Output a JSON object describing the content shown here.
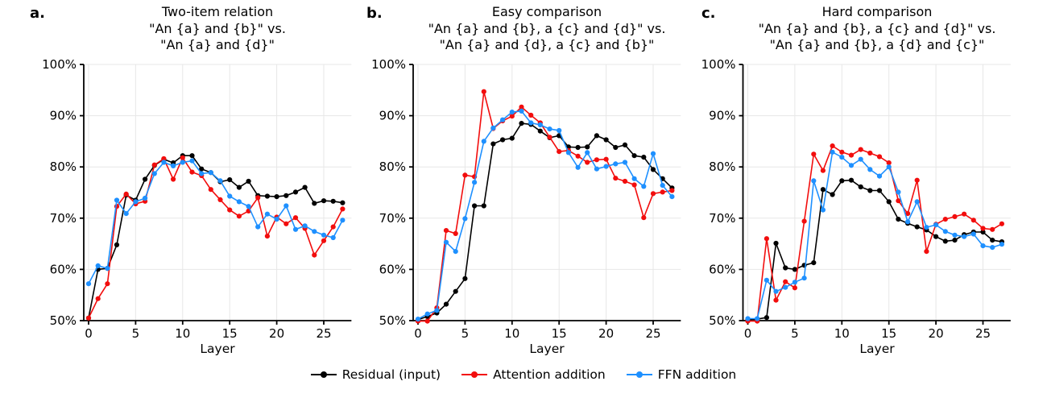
{
  "figure": {
    "background": "#ffffff",
    "panels": [
      {
        "letter": "a.",
        "title_lines": [
          "Two-item relation",
          "\"An {a} and {b}\" vs.",
          "\"An {a} and {d}\""
        ],
        "xlabel": "Layer"
      },
      {
        "letter": "b.",
        "title_lines": [
          "Easy comparison",
          "\"An {a} and {b}, a {c} and {d}\" vs.",
          "\"An {a} and {d}, a {c} and {b}\""
        ],
        "xlabel": "Layer"
      },
      {
        "letter": "c.",
        "title_lines": [
          "Hard comparison",
          "\"An {a} and {b}, a {c} and {d}\" vs.",
          "\"An {a} and {b}, a {d} and {c}\""
        ],
        "xlabel": "Layer"
      }
    ],
    "legend": [
      {
        "label": "Residual (input)",
        "color": "#000000"
      },
      {
        "label": "Attention addition",
        "color": "#f20d0d"
      },
      {
        "label": "FFN addition",
        "color": "#1e90ff"
      }
    ]
  },
  "chart_data": [
    {
      "type": "line",
      "title": "Two-item relation \"An {a} and {b}\" vs. \"An {a} and {d}\"",
      "xlabel": "Layer",
      "ylabel": "",
      "x": [
        0,
        1,
        2,
        3,
        4,
        5,
        6,
        7,
        8,
        9,
        10,
        11,
        12,
        13,
        14,
        15,
        16,
        17,
        18,
        19,
        20,
        21,
        22,
        23,
        24,
        25,
        26,
        27
      ],
      "xticks": [
        0,
        5,
        10,
        15,
        20,
        25
      ],
      "ylim": [
        50,
        100
      ],
      "yticks": [
        50,
        60,
        70,
        80,
        90,
        100
      ],
      "ytick_labels": [
        "50%",
        "60%",
        "70%",
        "80%",
        "90%",
        "100%"
      ],
      "grid": true,
      "legend_position": "bottom",
      "series": [
        {
          "name": "Residual (input)",
          "color": "#000000",
          "values": [
            50.5,
            60.0,
            60.2,
            64.8,
            74.5,
            73.5,
            77.6,
            80.3,
            81.5,
            80.8,
            82.2,
            82.2,
            79.6,
            78.9,
            77.1,
            77.5,
            76.0,
            77.2,
            74.4,
            74.3,
            74.2,
            74.4,
            75.1,
            76.0,
            72.9,
            73.4,
            73.3,
            73.0
          ]
        },
        {
          "name": "Attention addition",
          "color": "#f20d0d",
          "values": [
            50.5,
            54.3,
            57.2,
            72.3,
            74.7,
            72.8,
            73.3,
            80.4,
            81.6,
            77.6,
            81.8,
            79.0,
            78.3,
            75.6,
            73.6,
            71.6,
            70.4,
            71.4,
            74.0,
            66.5,
            70.2,
            68.9,
            70.1,
            68.0,
            62.8,
            65.6,
            68.3,
            71.8
          ]
        },
        {
          "name": "FFN addition",
          "color": "#1e90ff",
          "values": [
            57.2,
            60.7,
            60.2,
            73.5,
            70.9,
            73.2,
            73.9,
            78.7,
            80.9,
            80.2,
            80.9,
            81.2,
            78.7,
            78.9,
            77.3,
            74.3,
            73.2,
            72.3,
            68.3,
            70.8,
            69.8,
            72.4,
            67.8,
            68.5,
            67.4,
            66.7,
            66.2,
            69.6
          ]
        }
      ]
    },
    {
      "type": "line",
      "title": "Easy comparison \"An {a} and {b}, a {c} and {d}\" vs. \"An {a} and {d}, a {c} and {b}\"",
      "xlabel": "Layer",
      "ylabel": "",
      "x": [
        0,
        1,
        2,
        3,
        4,
        5,
        6,
        7,
        8,
        9,
        10,
        11,
        12,
        13,
        14,
        15,
        16,
        17,
        18,
        19,
        20,
        21,
        22,
        23,
        24,
        25,
        26,
        27
      ],
      "xticks": [
        0,
        5,
        10,
        15,
        20,
        25
      ],
      "ylim": [
        50,
        100
      ],
      "yticks": [
        50,
        60,
        70,
        80,
        90,
        100
      ],
      "ytick_labels": [
        "50%",
        "60%",
        "70%",
        "80%",
        "90%",
        "100%"
      ],
      "grid": true,
      "legend_position": "bottom",
      "series": [
        {
          "name": "Residual (input)",
          "color": "#000000",
          "values": [
            50.2,
            50.8,
            51.5,
            53.2,
            55.7,
            58.2,
            72.4,
            72.4,
            84.5,
            85.3,
            85.6,
            88.5,
            88.3,
            87.0,
            85.7,
            86.1,
            83.9,
            83.8,
            83.9,
            86.1,
            85.3,
            83.8,
            84.3,
            82.2,
            81.9,
            79.5,
            77.7,
            75.9
          ]
        },
        {
          "name": "Attention addition",
          "color": "#f20d0d",
          "values": [
            49.9,
            49.9,
            52.5,
            67.6,
            67.0,
            78.4,
            78.1,
            94.7,
            87.5,
            89.0,
            89.9,
            91.7,
            90.1,
            88.6,
            85.8,
            83.0,
            83.2,
            82.1,
            80.9,
            81.4,
            81.5,
            77.8,
            77.2,
            76.5,
            70.1,
            74.8,
            75.1,
            75.4
          ]
        },
        {
          "name": "FFN addition",
          "color": "#1e90ff",
          "values": [
            50.3,
            51.3,
            52.0,
            65.3,
            63.5,
            69.9,
            77.0,
            85.0,
            87.6,
            89.2,
            90.7,
            90.9,
            88.6,
            88.2,
            87.4,
            87.1,
            82.8,
            79.9,
            82.8,
            79.6,
            80.1,
            80.6,
            80.9,
            77.7,
            76.2,
            82.6,
            76.4,
            74.2
          ]
        }
      ]
    },
    {
      "type": "line",
      "title": "Hard comparison \"An {a} and {b}, a {c} and {d}\" vs. \"An {a} and {b}, a {d} and {c}\"",
      "xlabel": "Layer",
      "ylabel": "",
      "x": [
        0,
        1,
        2,
        3,
        4,
        5,
        6,
        7,
        8,
        9,
        10,
        11,
        12,
        13,
        14,
        15,
        16,
        17,
        18,
        19,
        20,
        21,
        22,
        23,
        24,
        25,
        26,
        27
      ],
      "xticks": [
        0,
        5,
        10,
        15,
        20,
        25
      ],
      "ylim": [
        50,
        100
      ],
      "yticks": [
        50,
        60,
        70,
        80,
        90,
        100
      ],
      "ytick_labels": [
        "50%",
        "60%",
        "70%",
        "80%",
        "90%",
        "100%"
      ],
      "grid": true,
      "legend_position": "bottom",
      "series": [
        {
          "name": "Residual (input)",
          "color": "#000000",
          "values": [
            50.2,
            50.3,
            50.6,
            65.1,
            60.3,
            60.0,
            60.8,
            61.3,
            75.6,
            74.6,
            77.3,
            77.4,
            76.1,
            75.4,
            75.4,
            73.2,
            69.8,
            69.0,
            68.3,
            67.7,
            66.4,
            65.5,
            65.7,
            66.8,
            67.3,
            67.3,
            65.7,
            65.4
          ]
        },
        {
          "name": "Attention addition",
          "color": "#f20d0d",
          "values": [
            49.9,
            49.9,
            66.0,
            54.0,
            57.6,
            56.4,
            69.4,
            82.5,
            79.3,
            84.1,
            82.9,
            82.3,
            83.4,
            82.7,
            82.0,
            80.8,
            73.4,
            70.9,
            77.4,
            63.5,
            68.8,
            69.8,
            70.3,
            70.8,
            69.6,
            68.0,
            67.8,
            68.9
          ]
        },
        {
          "name": "FFN addition",
          "color": "#1e90ff",
          "values": [
            50.4,
            50.4,
            57.9,
            55.7,
            56.5,
            57.5,
            58.3,
            77.3,
            71.6,
            82.9,
            81.9,
            80.3,
            81.5,
            79.5,
            78.2,
            80.0,
            75.1,
            69.3,
            73.2,
            68.2,
            68.7,
            67.4,
            66.7,
            66.4,
            66.9,
            64.6,
            64.3,
            64.9
          ]
        }
      ]
    }
  ]
}
